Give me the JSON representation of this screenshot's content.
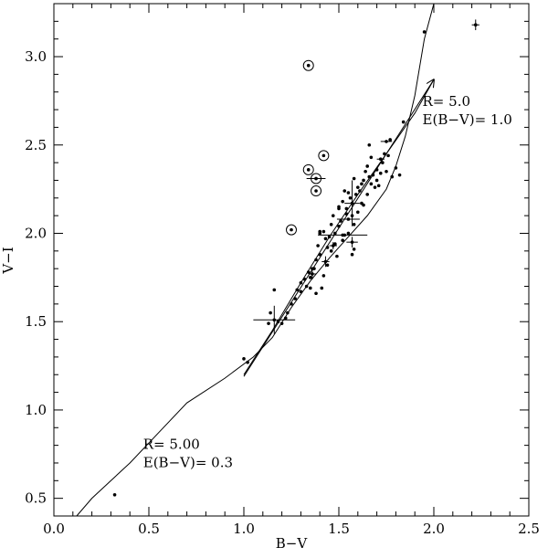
{
  "chart_data": {
    "type": "scatter",
    "title": "",
    "xlabel": "B−V",
    "ylabel": "V−I",
    "xlim": [
      0.0,
      2.5
    ],
    "ylim": [
      0.4,
      3.3
    ],
    "x_ticks": [
      0.0,
      0.5,
      1.0,
      1.5,
      2.0,
      2.5
    ],
    "x_tick_labels": [
      "0.0",
      "0.5",
      "1.0",
      "1.5",
      "2.0",
      "2.5"
    ],
    "y_ticks": [
      0.5,
      1.0,
      1.5,
      2.0,
      2.5,
      3.0
    ],
    "y_tick_labels": [
      "0.5",
      "1.0",
      "1.5",
      "2.0",
      "2.5",
      "3.0"
    ],
    "grid": false,
    "colors": {
      "ink": "#000000",
      "background": "#ffffff"
    },
    "series": [
      {
        "type": "line",
        "x": [
          0.12,
          0.2,
          0.4,
          0.55,
          0.7,
          0.9,
          1.05,
          1.15,
          1.25,
          1.35,
          1.45,
          1.55,
          1.65,
          1.75,
          1.8,
          1.85,
          1.9,
          1.95,
          2.0
        ],
        "y": [
          0.4,
          0.5,
          0.7,
          0.87,
          1.04,
          1.18,
          1.3,
          1.41,
          1.58,
          1.73,
          1.86,
          1.98,
          2.1,
          2.25,
          2.38,
          2.55,
          2.78,
          3.1,
          3.3
        ]
      },
      {
        "type": "line",
        "x": [
          1.0,
          1.15,
          1.3,
          1.45,
          1.6,
          1.75,
          1.9,
          2.0
        ],
        "y": [
          1.2,
          1.45,
          1.72,
          1.98,
          2.22,
          2.45,
          2.68,
          2.87
        ]
      },
      {
        "type": "scatter",
        "x": [
          0.32,
          1.02,
          1.0,
          1.13,
          1.14,
          1.16,
          1.18,
          1.2,
          1.22,
          1.23,
          1.25,
          1.27,
          1.28,
          1.3,
          1.3,
          1.32,
          1.33,
          1.34,
          1.35,
          1.36,
          1.37,
          1.38,
          1.39,
          1.4,
          1.4,
          1.42,
          1.43,
          1.44,
          1.45,
          1.46,
          1.47,
          1.48,
          1.49,
          1.5,
          1.5,
          1.51,
          1.52,
          1.53,
          1.54,
          1.55,
          1.55,
          1.56,
          1.57,
          1.58,
          1.59,
          1.6,
          1.6,
          1.61,
          1.62,
          1.63,
          1.64,
          1.65,
          1.65,
          1.66,
          1.67,
          1.68,
          1.69,
          1.7,
          1.7,
          1.72,
          1.73,
          1.75,
          1.76,
          1.78,
          1.8,
          1.82,
          1.38,
          1.42,
          1.44,
          1.46,
          1.48,
          1.52,
          1.54,
          1.57,
          1.63,
          1.67,
          1.71,
          1.74,
          1.77,
          1.35,
          1.41,
          1.53,
          1.58,
          1.66,
          1.84,
          1.95,
          1.58,
          1.5,
          1.62,
          1.4
        ],
        "y": [
          0.52,
          1.27,
          1.29,
          1.49,
          1.55,
          1.68,
          1.5,
          1.49,
          1.52,
          1.55,
          1.6,
          1.63,
          1.68,
          1.67,
          1.72,
          1.74,
          1.7,
          1.78,
          1.75,
          1.8,
          1.8,
          1.85,
          1.93,
          1.88,
          2.01,
          2.01,
          1.97,
          1.92,
          1.98,
          2.05,
          2.1,
          2.0,
          1.87,
          2.04,
          2.15,
          2.07,
          2.18,
          2.24,
          2.11,
          2.23,
          2.0,
          2.2,
          1.88,
          2.05,
          2.22,
          2.26,
          2.12,
          2.24,
          2.28,
          2.3,
          2.35,
          2.38,
          2.22,
          2.32,
          2.28,
          2.33,
          2.26,
          2.36,
          2.3,
          2.34,
          2.4,
          2.35,
          2.44,
          2.32,
          2.37,
          2.33,
          1.66,
          1.76,
          1.82,
          1.9,
          1.94,
          1.96,
          2.14,
          2.1,
          2.16,
          2.43,
          2.27,
          2.45,
          2.53,
          1.69,
          1.69,
          1.99,
          1.91,
          2.5,
          2.63,
          3.14,
          2.31,
          2.14,
          2.17,
          2.0
        ]
      },
      {
        "type": "scatter",
        "x": [
          1.25,
          1.34,
          1.34,
          1.38,
          1.38,
          1.42
        ],
        "y": [
          2.02,
          2.95,
          2.36,
          2.31,
          2.24,
          2.44
        ]
      }
    ],
    "error_bars": [
      {
        "x": 1.16,
        "y": 1.51,
        "xerr": 0.11,
        "yerr": 0.08
      },
      {
        "x": 1.52,
        "y": 1.99,
        "xerr": 0.13,
        "yerr": 0.0
      },
      {
        "x": 1.55,
        "y": 2.08,
        "xerr": 0.06,
        "yerr": 0.0
      },
      {
        "x": 1.57,
        "y": 2.17,
        "xerr": 0.04,
        "yerr": 0.13
      },
      {
        "x": 1.38,
        "y": 2.31,
        "xerr": 0.05,
        "yerr": 0.0
      },
      {
        "x": 1.72,
        "y": 2.42,
        "xerr": 0.02,
        "yerr": 0.0
      },
      {
        "x": 1.75,
        "y": 2.52,
        "xerr": 0.03,
        "yerr": 0.0
      },
      {
        "x": 2.22,
        "y": 3.18,
        "xerr": 0.02,
        "yerr": 0.03
      },
      {
        "x": 1.43,
        "y": 1.84,
        "xerr": 0.02,
        "yerr": 0.03
      },
      {
        "x": 1.47,
        "y": 1.93,
        "xerr": 0.02,
        "yerr": 0.02
      },
      {
        "x": 1.36,
        "y": 1.77,
        "xerr": 0.02,
        "yerr": 0.03
      },
      {
        "x": 1.57,
        "y": 1.95,
        "xerr": 0.03,
        "yerr": 0.03
      }
    ],
    "reddening_arrow": {
      "x1": 1.0,
      "y1": 1.19,
      "x2": 2.0,
      "y2": 2.87
    },
    "annotations": [
      {
        "lines": [
          "R= 5.0",
          "E(B−V)= 1.0"
        ],
        "x": 1.94,
        "y": 2.72
      },
      {
        "lines": [
          "R= 5.00",
          "E(B−V)= 0.3"
        ],
        "x": 0.47,
        "y": 0.78
      }
    ]
  }
}
